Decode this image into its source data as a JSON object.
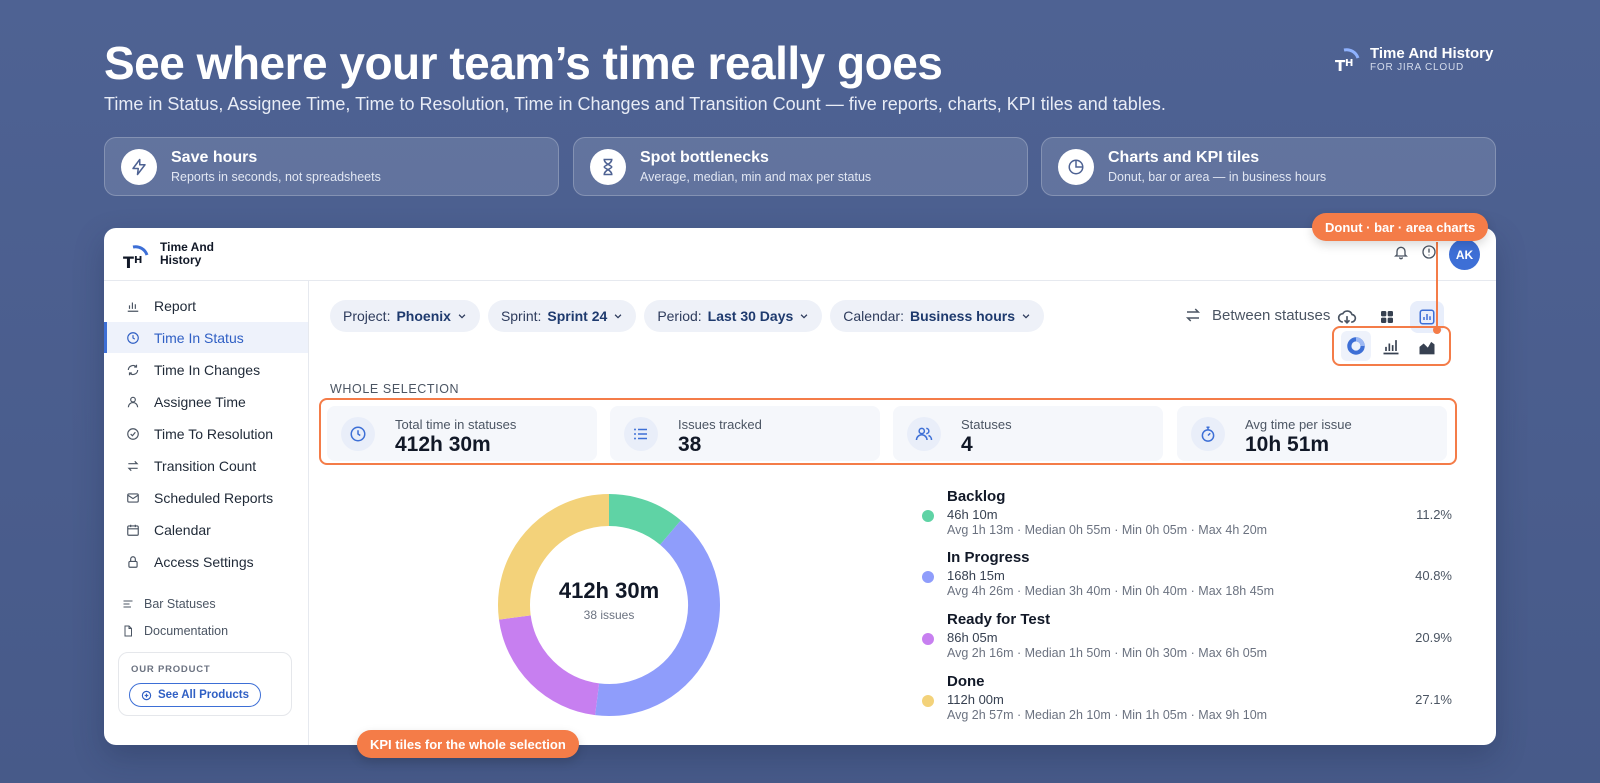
{
  "hero": {
    "title": "See where your team’s time really goes",
    "subtitle": "Time in Status, Assignee Time, Time to Resolution, Time in Changes and Transition Count — five reports, charts, KPI tiles and tables."
  },
  "brand": {
    "name": "Time And History",
    "tagline": "FOR JIRA CLOUD"
  },
  "features": [
    {
      "title": "Save hours",
      "subtitle": "Reports in seconds, not spreadsheets",
      "icon": "lightning-icon"
    },
    {
      "title": "Spot bottlenecks",
      "subtitle": "Average, median, min and max per status",
      "icon": "hourglass-icon"
    },
    {
      "title": "Charts and KPI tiles",
      "subtitle": "Donut, bar or area — in business hours",
      "icon": "pie-chart-icon"
    }
  ],
  "app": {
    "name_line1": "Time And",
    "name_line2": "History",
    "avatar": "AK"
  },
  "sidebar": {
    "items": [
      {
        "label": "Report",
        "icon": "bar-chart-icon"
      },
      {
        "label": "Time In Status",
        "icon": "clock-icon",
        "active": true
      },
      {
        "label": "Time In Changes",
        "icon": "refresh-icon"
      },
      {
        "label": "Assignee Time",
        "icon": "user-icon"
      },
      {
        "label": "Time To Resolution",
        "icon": "check-circle-icon"
      },
      {
        "label": "Transition Count",
        "icon": "transfer-icon"
      },
      {
        "label": "Scheduled Reports",
        "icon": "mail-icon"
      },
      {
        "label": "Calendar",
        "icon": "calendar-icon"
      },
      {
        "label": "Access Settings",
        "icon": "lock-icon"
      }
    ],
    "secondary": [
      {
        "label": "Bar Statuses",
        "icon": "lines-icon"
      },
      {
        "label": "Documentation",
        "icon": "document-icon"
      }
    ],
    "product_label": "OUR PRODUCT",
    "product_button": "See All Products"
  },
  "filters": [
    {
      "key": "Project:",
      "value": "Phoenix"
    },
    {
      "key": "Sprint:",
      "value": "Sprint 24"
    },
    {
      "key": "Period:",
      "value": "Last 30 Days"
    },
    {
      "key": "Calendar:",
      "value": "Business hours"
    }
  ],
  "toolbar": {
    "between_label": "Between statuses"
  },
  "section_label": "WHOLE SELECTION",
  "kpis": [
    {
      "label": "Total time in statuses",
      "value": "412h 30m",
      "icon": "clock-icon"
    },
    {
      "label": "Issues tracked",
      "value": "38",
      "icon": "list-icon"
    },
    {
      "label": "Statuses",
      "value": "4",
      "icon": "users-icon"
    },
    {
      "label": "Avg time per issue",
      "value": "10h 51m",
      "icon": "stopwatch-icon"
    }
  ],
  "donut": {
    "center_value": "412h 30m",
    "center_sub": "38 issues"
  },
  "chart_data": {
    "type": "pie",
    "categories": [
      "Backlog",
      "In Progress",
      "Ready for Test",
      "Done"
    ],
    "values": [
      11.2,
      40.8,
      20.9,
      27.1
    ],
    "colors": [
      "#5fd3a5",
      "#8f9dfb",
      "#c77ff0",
      "#f3d27a"
    ]
  },
  "legend": [
    {
      "name": "Backlog",
      "total": "46h 10m",
      "stats": "Avg 1h 13m · Median 0h 55m · Min 0h 05m · Max 4h 20m",
      "pct": "11.2%",
      "color": "#5fd3a5"
    },
    {
      "name": "In Progress",
      "total": "168h 15m",
      "stats": "Avg 4h 26m · Median 3h 40m · Min 0h 40m · Max 18h 45m",
      "pct": "40.8%",
      "color": "#8f9dfb"
    },
    {
      "name": "Ready for Test",
      "total": "86h 05m",
      "stats": "Avg 2h 16m · Median 1h 50m · Min 0h 30m · Max 6h 05m",
      "pct": "20.9%",
      "color": "#c77ff0"
    },
    {
      "name": "Done",
      "total": "112h 00m",
      "stats": "Avg 2h 57m · Median 2h 10m · Min 1h 05m · Max 9h 10m",
      "pct": "27.1%",
      "color": "#f3d27a"
    }
  ],
  "callouts": {
    "charts": "Donut · bar · area charts",
    "kpi": "KPI tiles for the whole selection"
  }
}
